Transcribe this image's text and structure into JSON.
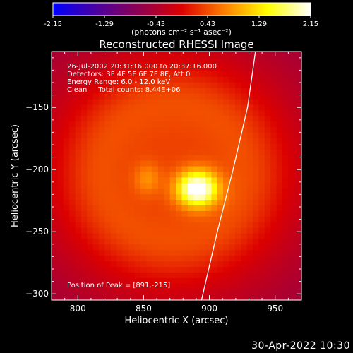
{
  "footer": {
    "timestamp": "30-Apr-2022 10:30"
  },
  "chart_data": {
    "type": "heatmap",
    "title": "Reconstructed RHESSI Image",
    "xlabel": "Heliocentric X (arcsec)",
    "ylabel": "Heliocentric Y (arcsec)",
    "xlim": [
      780,
      970
    ],
    "ylim": [
      -305,
      -105
    ],
    "x_ticks": [
      800,
      850,
      900,
      950
    ],
    "y_ticks": [
      -150,
      -200,
      -250,
      -300
    ],
    "colorbar": {
      "min": -2.15,
      "max": 2.15,
      "ticks": [
        "-2.15",
        "-1.29",
        "-0.43",
        "0.43",
        "1.29",
        "2.15"
      ],
      "label": "(photons cm⁻² s⁻¹ asec⁻²)",
      "colors": [
        "#0000ff",
        "#4a00a0",
        "#8e0050",
        "#dc0000",
        "#ff8000",
        "#ffff00",
        "#ffffff"
      ]
    },
    "annotations": [
      "26-Jul-2002 20:31:16.000 to 20:37:16.000",
      "Detectors: 3F 4F 5F 6F 7F 8F, Att 0",
      "Energy Range: 6.0 - 12.0 keV",
      "Clean     Total counts: 8.44E+06"
    ],
    "peak_label": "Position of Peak = [891,-215]",
    "peak": {
      "x": 891,
      "y": -215,
      "value": 2.15
    },
    "secondary_source": {
      "x": 853,
      "y": -207
    },
    "limb_curve": [
      [
        935,
        -105
      ],
      [
        929,
        -150
      ],
      [
        918,
        -200
      ],
      [
        906,
        -250
      ],
      [
        894,
        -305
      ]
    ]
  }
}
